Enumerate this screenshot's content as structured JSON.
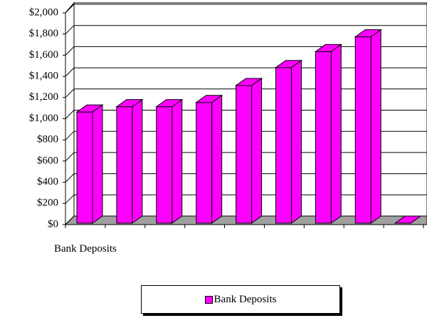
{
  "chart_data": {
    "type": "bar3d",
    "categories": [
      "Bank Deposits",
      null,
      null,
      null,
      null,
      null,
      null,
      null,
      null
    ],
    "series": [
      {
        "name": "Bank Deposits",
        "color": "#ff00ff",
        "values": [
          1050,
          1100,
          1100,
          1140,
          1300,
          1470,
          1620,
          1760,
          0
        ]
      }
    ],
    "ylim": [
      0,
      2000
    ],
    "yticks": [
      {
        "value": 0,
        "label": "$0"
      },
      {
        "value": 200,
        "label": "$200"
      },
      {
        "value": 400,
        "label": "$400"
      },
      {
        "value": 600,
        "label": "$600"
      },
      {
        "value": 800,
        "label": "$800"
      },
      {
        "value": 1000,
        "label": "$1,000"
      },
      {
        "value": 1200,
        "label": "$1,200"
      },
      {
        "value": 1400,
        "label": "$1,400"
      },
      {
        "value": 1600,
        "label": "$1,600"
      },
      {
        "value": 1800,
        "label": "$1,800"
      },
      {
        "value": 2000,
        "label": "$2,000"
      }
    ],
    "grid": true,
    "legend": "bottom"
  }
}
